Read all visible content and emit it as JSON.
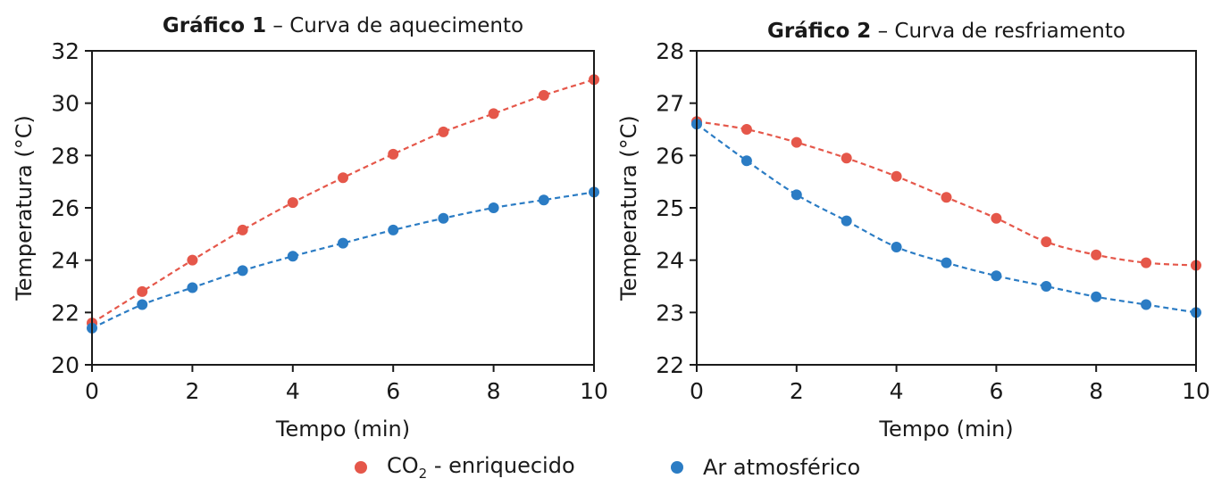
{
  "colors": {
    "co2": "#e5574a",
    "ar": "#2b7cc4",
    "axis": "#1a1a1a",
    "text": "#1a1a1a"
  },
  "legend": {
    "co2_prefix": "CO",
    "co2_sub": "2",
    "co2_suffix": " - enriquecido",
    "ar": "Ar atmosférico"
  },
  "chart_data": [
    {
      "type": "line",
      "title_bold": "Gráfico 1",
      "title_rest": " – Curva de aquecimento",
      "xlabel": "Tempo (min)",
      "ylabel": "Temperatura (°C)",
      "xlim": [
        0,
        10
      ],
      "ylim": [
        20,
        32
      ],
      "xticks": [
        0,
        2,
        4,
        6,
        8,
        10
      ],
      "yticks": [
        20,
        22,
        24,
        26,
        28,
        30,
        32
      ],
      "grid": false,
      "x": [
        0,
        1,
        2,
        3,
        4,
        5,
        6,
        7,
        8,
        9,
        10
      ],
      "series": [
        {
          "key": "co2",
          "values": [
            21.6,
            22.8,
            24.0,
            25.15,
            26.2,
            27.15,
            28.05,
            28.9,
            29.6,
            30.3,
            30.9
          ]
        },
        {
          "key": "ar",
          "values": [
            21.4,
            22.3,
            22.95,
            23.6,
            24.15,
            24.65,
            25.15,
            25.6,
            26.0,
            26.3,
            26.6
          ]
        }
      ]
    },
    {
      "type": "line",
      "title_bold": "Gráfico 2",
      "title_rest": " – Curva de resfriamento",
      "xlabel": "Tempo (min)",
      "ylabel": "Temperatura (°C)",
      "xlim": [
        0,
        10
      ],
      "ylim": [
        22,
        28
      ],
      "xticks": [
        0,
        2,
        4,
        6,
        8,
        10
      ],
      "yticks": [
        22,
        23,
        24,
        25,
        26,
        27,
        28
      ],
      "grid": false,
      "x": [
        0,
        1,
        2,
        3,
        4,
        5,
        6,
        7,
        8,
        9,
        10
      ],
      "series": [
        {
          "key": "co2",
          "values": [
            26.65,
            26.5,
            26.25,
            25.95,
            25.6,
            25.2,
            24.8,
            24.35,
            24.1,
            23.95,
            23.9
          ]
        },
        {
          "key": "ar",
          "values": [
            26.6,
            25.9,
            25.25,
            24.75,
            24.25,
            23.95,
            23.7,
            23.5,
            23.3,
            23.15,
            23.0
          ]
        }
      ]
    }
  ]
}
